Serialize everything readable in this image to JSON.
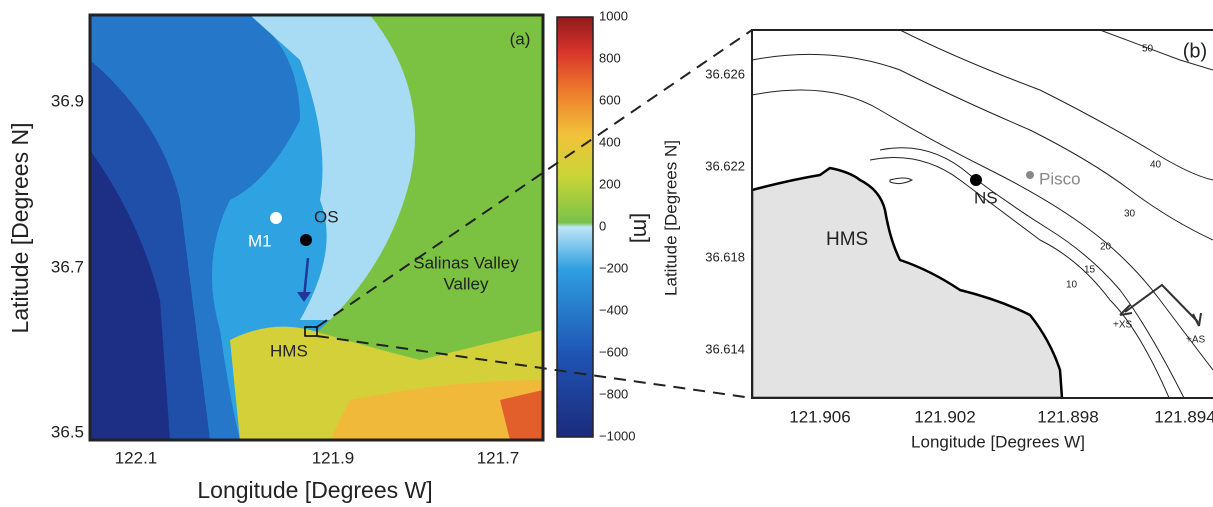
{
  "panel_a": {
    "label": "(a)",
    "x_label": "Longitude [Degrees W]",
    "y_label": "Latitude [Degrees N]",
    "xticks": [
      "122.1",
      "121.9",
      "121.7"
    ],
    "yticks": [
      "36.9",
      "36.7",
      "36.5"
    ],
    "annotations": {
      "m1": "M1",
      "os": "OS",
      "hms": "HMS",
      "salinas": "Salinas Valley"
    }
  },
  "colorbar": {
    "label": "[m]",
    "ticks": [
      "1000",
      "800",
      "600",
      "400",
      "200",
      "0",
      "−200",
      "−400",
      "−600",
      "−800",
      "−1000"
    ]
  },
  "panel_b": {
    "label": "(b)",
    "x_label": "Longitude [Degrees W]",
    "y_label": "Latitude [Degrees N]",
    "xticks": [
      "121.906",
      "121.902",
      "121.898",
      "121.894"
    ],
    "yticks": [
      "36.626",
      "36.622",
      "36.618",
      "36.614"
    ],
    "contour_labels": [
      "50",
      "40",
      "30",
      "20",
      "15",
      "10"
    ],
    "annotations": {
      "hms": "HMS",
      "ns": "NS",
      "pisco": "Pisco",
      "xs": "+XS",
      "as": "+AS"
    }
  }
}
